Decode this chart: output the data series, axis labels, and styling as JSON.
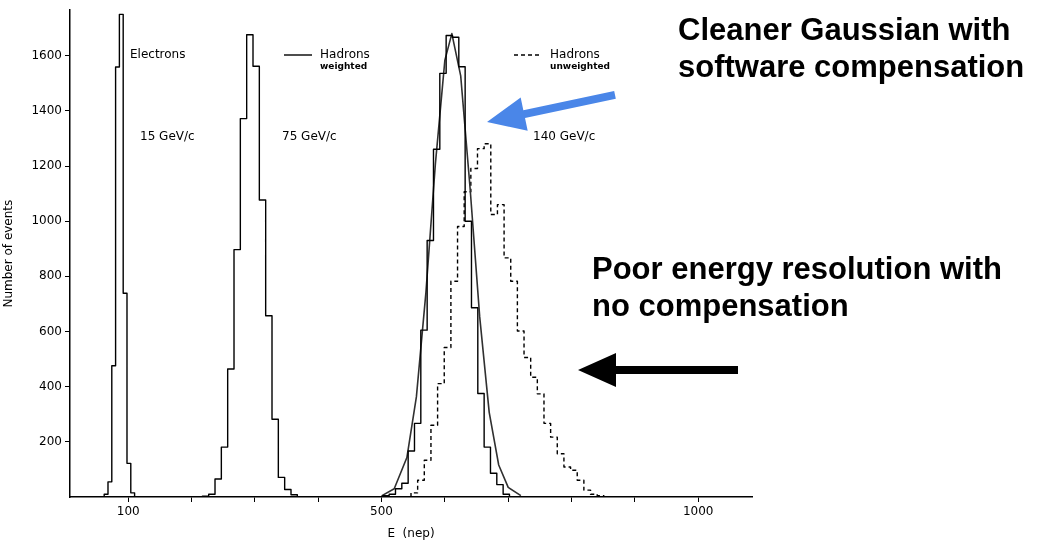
{
  "chart_data": {
    "type": "histogram",
    "xlabel": "E  (nep)",
    "ylabel": "Number of events",
    "xlim": [
      8,
      1085
    ],
    "ylim": [
      0,
      1765
    ],
    "xticks": [
      100,
      {
        "value": 200,
        "label": null
      },
      {
        "value": 300,
        "label": null
      },
      {
        "value": 400,
        "label": null
      },
      500,
      {
        "value": 600,
        "label": null
      },
      {
        "value": 700,
        "label": null
      },
      {
        "value": 800,
        "label": null
      },
      {
        "value": 900,
        "label": null
      },
      1000
    ],
    "yticks": [
      200,
      400,
      600,
      800,
      1000,
      1200,
      1400,
      1600
    ],
    "grid": false,
    "legend": "top",
    "line_style": "solid",
    "series": [
      {
        "name": "Electrons",
        "color": "#000000",
        "bins": [
          62,
          68,
          74,
          80,
          86,
          92,
          98,
          104,
          110
        ],
        "values": [
          10,
          55,
          476,
          1559,
          1750,
          739,
          122,
          15
        ]
      },
      {
        "name": "Hadrons weighted",
        "color": "#000000",
        "bins": [
          217,
          227,
          237,
          247,
          257,
          267,
          277,
          287,
          297,
          307,
          317,
          327,
          337,
          347,
          357,
          367,
          502,
          512,
          522,
          532,
          542,
          552,
          562,
          572,
          582,
          592,
          602,
          612,
          622,
          632,
          642,
          652,
          662,
          672,
          682,
          692,
          702
        ],
        "values": [
          3,
          10,
          65,
          181,
          464,
          897,
          1372,
          1676,
          1562,
          1077,
          657,
          282,
          71,
          27,
          8,
          0,
          5,
          10,
          30,
          50,
          167,
          267,
          605,
          930,
          1261,
          1536,
          1673,
          1667,
          1560,
          1000,
          686,
          375,
          181,
          86,
          45,
          10
        ]
      },
      {
        "type": "line",
        "color": "#303030",
        "x": [
          500,
          520,
          540,
          555,
          570,
          585,
          600,
          611,
          625,
          640,
          655,
          670,
          685,
          700,
          720
        ],
        "values": [
          4,
          30,
          143,
          363,
          740,
          1208,
          1584,
          1680,
          1527,
          1114,
          653,
          307,
          116,
          35,
          5
        ]
      },
      {
        "name": "Hadrons unweighted",
        "color": "#000000",
        "line_style": "dashed",
        "bins": [
          546.5,
          557,
          567.5,
          578,
          588.5,
          599,
          609.5,
          620,
          630.5,
          641,
          651.5,
          662,
          672.5,
          683,
          693.5,
          704,
          714.5,
          725,
          735.5,
          746,
          756.5,
          767,
          777.5,
          788,
          798.5,
          809,
          819.5,
          830,
          840.5,
          851
        ],
        "values": [
          15,
          61,
          133,
          260,
          411,
          542,
          782,
          981,
          1107,
          1191,
          1263,
          1281,
          1024,
          1060,
          867,
          782,
          602,
          506,
          434,
          374,
          267,
          217,
          157,
          109,
          97,
          61,
          25,
          10,
          5
        ]
      }
    ],
    "annotations": [
      "15 GeV/c",
      "75 GeV/c",
      "140 GeV/c",
      "Cleaner Gaussian with software compensation",
      "Poor energy resolution with no compensation"
    ]
  }
}
